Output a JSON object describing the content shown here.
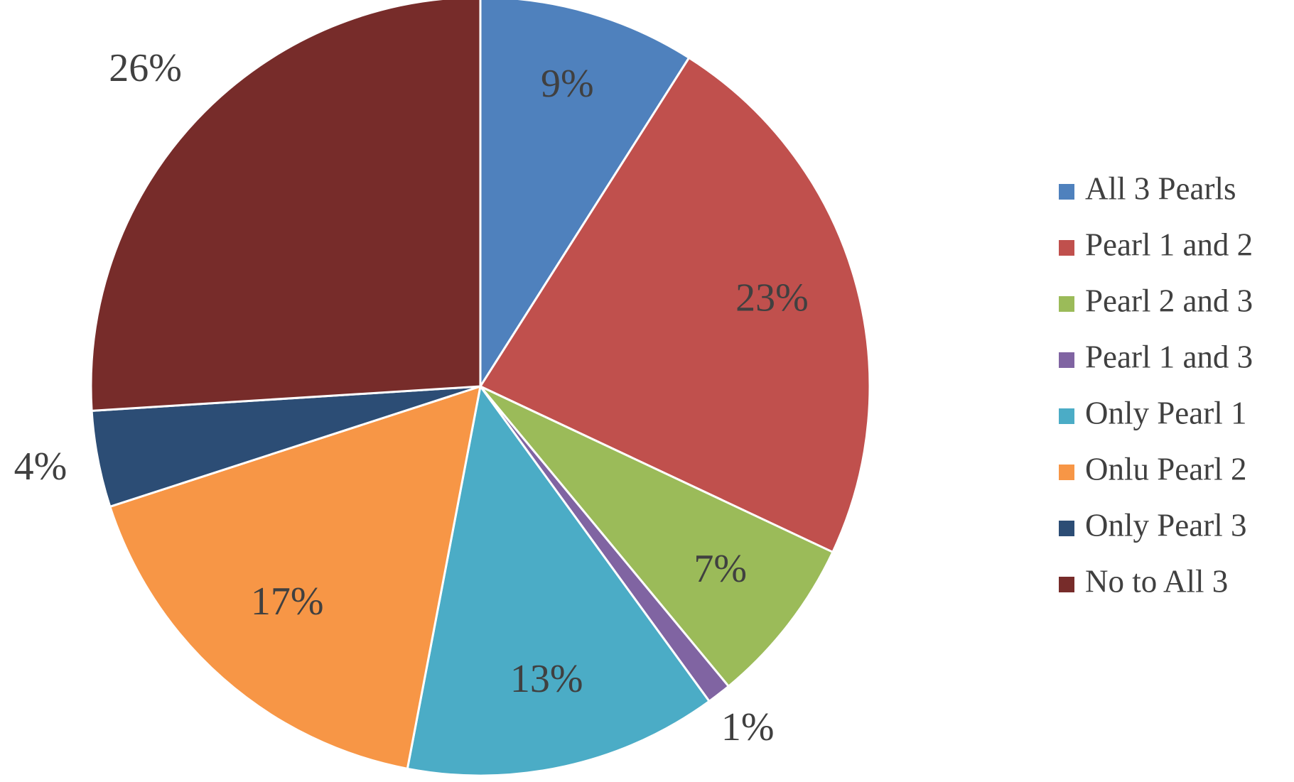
{
  "chart_data": {
    "type": "pie",
    "categories": [
      "All 3 Pearls",
      "Pearl 1 and 2",
      "Pearl 2 and 3",
      "Pearl 1 and 3",
      "Only Pearl 1",
      "Onlu Pearl 2",
      "Only Pearl 3",
      "No to All 3"
    ],
    "values": [
      9,
      23,
      7,
      1,
      13,
      17,
      4,
      26
    ],
    "value_labels": [
      "9%",
      "23%",
      "7%",
      "1%",
      "13%",
      "17%",
      "4%",
      "26%"
    ],
    "colors": [
      "#4f81bd",
      "#c0504d",
      "#9bbb59",
      "#8064a2",
      "#4bacc6",
      "#f79646",
      "#2c4d75",
      "#772c2a"
    ],
    "legend": "right"
  }
}
